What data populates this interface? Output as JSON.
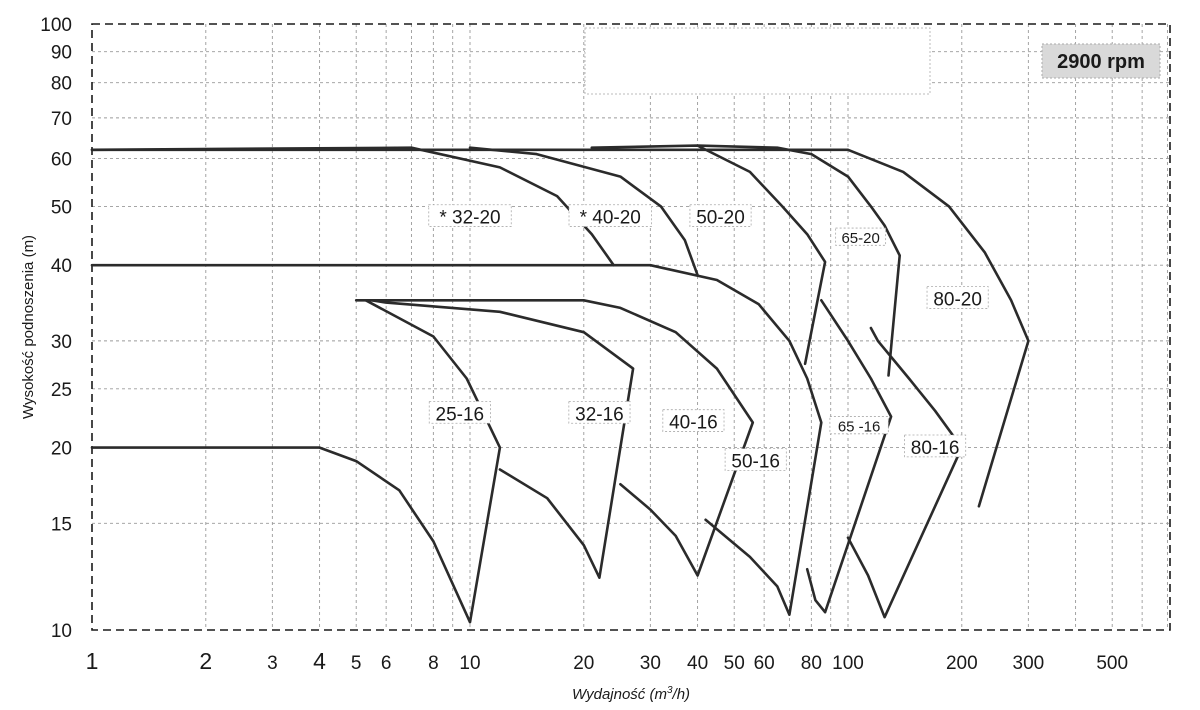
{
  "chart_data": {
    "type": "line",
    "title": "",
    "xlabel": "Wydajność (m3/h)",
    "ylabel": "Wysokość podnoszenia (m)",
    "xscale": "log",
    "yscale": "log",
    "xlim": [
      1,
      800
    ],
    "ylim": [
      10,
      100
    ],
    "grid": true,
    "speed_badge": "2900 rpm",
    "x_ticks": [
      {
        "v": 1,
        "label": "1"
      },
      {
        "v": 2,
        "label": "2"
      },
      {
        "v": 3,
        "label": "3"
      },
      {
        "v": 4,
        "label": "4"
      },
      {
        "v": 5,
        "label": "5"
      },
      {
        "v": 6,
        "label": "6"
      },
      {
        "v": 8,
        "label": "8"
      },
      {
        "v": 10,
        "label": "10"
      },
      {
        "v": 20,
        "label": "20"
      },
      {
        "v": 30,
        "label": "30"
      },
      {
        "v": 40,
        "label": "40"
      },
      {
        "v": 50,
        "label": "50"
      },
      {
        "v": 60,
        "label": "60"
      },
      {
        "v": 80,
        "label": "80"
      },
      {
        "v": 100,
        "label": "100"
      },
      {
        "v": 200,
        "label": "200"
      },
      {
        "v": 300,
        "label": "300"
      },
      {
        "v": 500,
        "label": "500"
      }
    ],
    "y_ticks": [
      {
        "v": 10,
        "label": "10"
      },
      {
        "v": 15,
        "label": "15"
      },
      {
        "v": 20,
        "label": "20"
      },
      {
        "v": 25,
        "label": "25"
      },
      {
        "v": 30,
        "label": "30"
      },
      {
        "v": 40,
        "label": "40"
      },
      {
        "v": 50,
        "label": "50"
      },
      {
        "v": 60,
        "label": "60"
      },
      {
        "v": 70,
        "label": "70"
      },
      {
        "v": 80,
        "label": "80"
      },
      {
        "v": 90,
        "label": "90"
      },
      {
        "v": 100,
        "label": "100"
      }
    ],
    "series": [
      {
        "name": "25-16",
        "label_at": [
          9.4,
          22.5
        ],
        "points": [
          [
            1,
            20
          ],
          [
            4,
            20
          ],
          [
            5,
            19
          ],
          [
            6.5,
            17
          ],
          [
            8,
            14
          ],
          [
            10,
            10.3
          ],
          [
            12,
            20
          ],
          [
            9.8,
            26
          ],
          [
            8,
            30.5
          ],
          [
            5.3,
            35
          ]
        ]
      },
      {
        "name": "32-16",
        "label_at": [
          22,
          22.5
        ],
        "points": [
          [
            12,
            18.4
          ],
          [
            16,
            16.5
          ],
          [
            20,
            13.8
          ],
          [
            22,
            12.2
          ],
          [
            27,
            27
          ],
          [
            20,
            31
          ],
          [
            12,
            33.5
          ],
          [
            6,
            34.7
          ],
          [
            5.5,
            35
          ]
        ]
      },
      {
        "name": "40-16",
        "label_at": [
          39,
          21.8
        ],
        "points": [
          [
            25,
            17.4
          ],
          [
            30,
            15.8
          ],
          [
            35,
            14.3
          ],
          [
            40,
            12.3
          ],
          [
            56,
            22
          ],
          [
            45,
            27
          ],
          [
            35,
            31
          ],
          [
            25,
            34
          ],
          [
            20,
            35
          ],
          [
            5,
            35
          ]
        ]
      },
      {
        "name": "50-16",
        "label_at": [
          57,
          18.8
        ],
        "points": [
          [
            42,
            15.2
          ],
          [
            55,
            13.2
          ],
          [
            65,
            11.8
          ],
          [
            70,
            10.6
          ],
          [
            85,
            22
          ],
          [
            78,
            26
          ],
          [
            70,
            30
          ],
          [
            58,
            34.5
          ],
          [
            45,
            37.8
          ],
          [
            30,
            40
          ],
          [
            1,
            40
          ]
        ]
      },
      {
        "name": "65 -16",
        "label_at": [
          107,
          21.5
        ],
        "points": [
          [
            78,
            12.6
          ],
          [
            82,
            11.2
          ],
          [
            87,
            10.7
          ],
          [
            130,
            22.5
          ],
          [
            115,
            26
          ],
          [
            100,
            30
          ],
          [
            85,
            35
          ]
        ]
      },
      {
        "name": "80-16",
        "label_at": [
          170,
          19.8
        ],
        "points": [
          [
            100,
            14.2
          ],
          [
            113,
            12.3
          ],
          [
            125,
            10.5
          ],
          [
            200,
            20
          ],
          [
            170,
            23
          ],
          [
            145,
            26
          ],
          [
            120,
            30
          ],
          [
            115,
            31.5
          ]
        ]
      },
      {
        "name": "* 32-20",
        "label_at": [
          10,
          47.5
        ],
        "points": [
          [
            1,
            62
          ],
          [
            7,
            62.5
          ],
          [
            12,
            58
          ],
          [
            17,
            52
          ],
          [
            21,
            45
          ],
          [
            24,
            40
          ]
        ]
      },
      {
        "name": "* 40-20",
        "label_at": [
          23.5,
          47.5
        ],
        "points": [
          [
            10,
            62.5
          ],
          [
            15,
            61
          ],
          [
            25,
            56
          ],
          [
            32,
            50
          ],
          [
            37,
            44
          ],
          [
            40,
            38.5
          ]
        ]
      },
      {
        "name": "50-20",
        "label_at": [
          46,
          47.5
        ],
        "points": [
          [
            21,
            62.5
          ],
          [
            40,
            63
          ],
          [
            55,
            57
          ],
          [
            67,
            50
          ],
          [
            78,
            45
          ],
          [
            87,
            40.5
          ],
          [
            77,
            27.5
          ]
        ]
      },
      {
        "name": "65-20",
        "label_at": [
          108,
          44
        ],
        "points": [
          [
            40,
            63
          ],
          [
            65,
            62.5
          ],
          [
            80,
            61
          ],
          [
            100,
            56
          ],
          [
            115,
            50
          ],
          [
            125,
            46.5
          ],
          [
            137,
            41.5
          ],
          [
            128,
            26.3
          ]
        ]
      },
      {
        "name": "80-20",
        "label_at": [
          195,
          34.8
        ],
        "points": [
          [
            1,
            62
          ],
          [
            100,
            62
          ],
          [
            140,
            57
          ],
          [
            185,
            50
          ],
          [
            230,
            42
          ],
          [
            270,
            35
          ],
          [
            300,
            30
          ],
          [
            222,
            16
          ]
        ]
      }
    ]
  }
}
